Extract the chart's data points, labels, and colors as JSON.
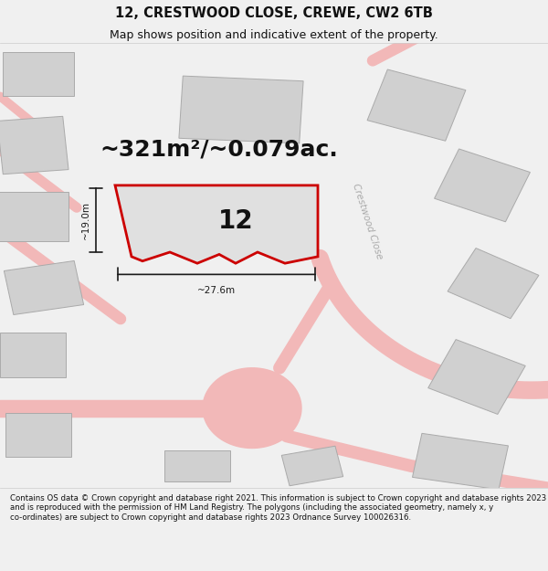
{
  "title": "12, CRESTWOOD CLOSE, CREWE, CW2 6TB",
  "subtitle": "Map shows position and indicative extent of the property.",
  "footer": "Contains OS data © Crown copyright and database right 2021. This information is subject to Crown copyright and database rights 2023 and is reproduced with the permission of HM Land Registry. The polygons (including the associated geometry, namely x, y co-ordinates) are subject to Crown copyright and database rights 2023 Ordnance Survey 100026316.",
  "area_label": "~321m²/~0.079ac.",
  "number_label": "12",
  "width_label": "~27.6m",
  "height_label": "~19.0m",
  "background_color": "#f0f0f0",
  "map_background": "#f0f0f0",
  "title_fontsize": 10.5,
  "subtitle_fontsize": 9,
  "road_color": "#f2b8b8",
  "road_edge_color": "#e09090",
  "building_fill": "#d0d0d0",
  "building_edge": "#aaaaaa",
  "plot_fill": "#e0e0e0",
  "plot_edge_red": "#cc0000",
  "dimension_color": "#1a1a1a",
  "street_label_color": "#aaaaaa",
  "area_label_fontsize": 18,
  "number_label_fontsize": 20,
  "footer_fontsize": 6.2
}
